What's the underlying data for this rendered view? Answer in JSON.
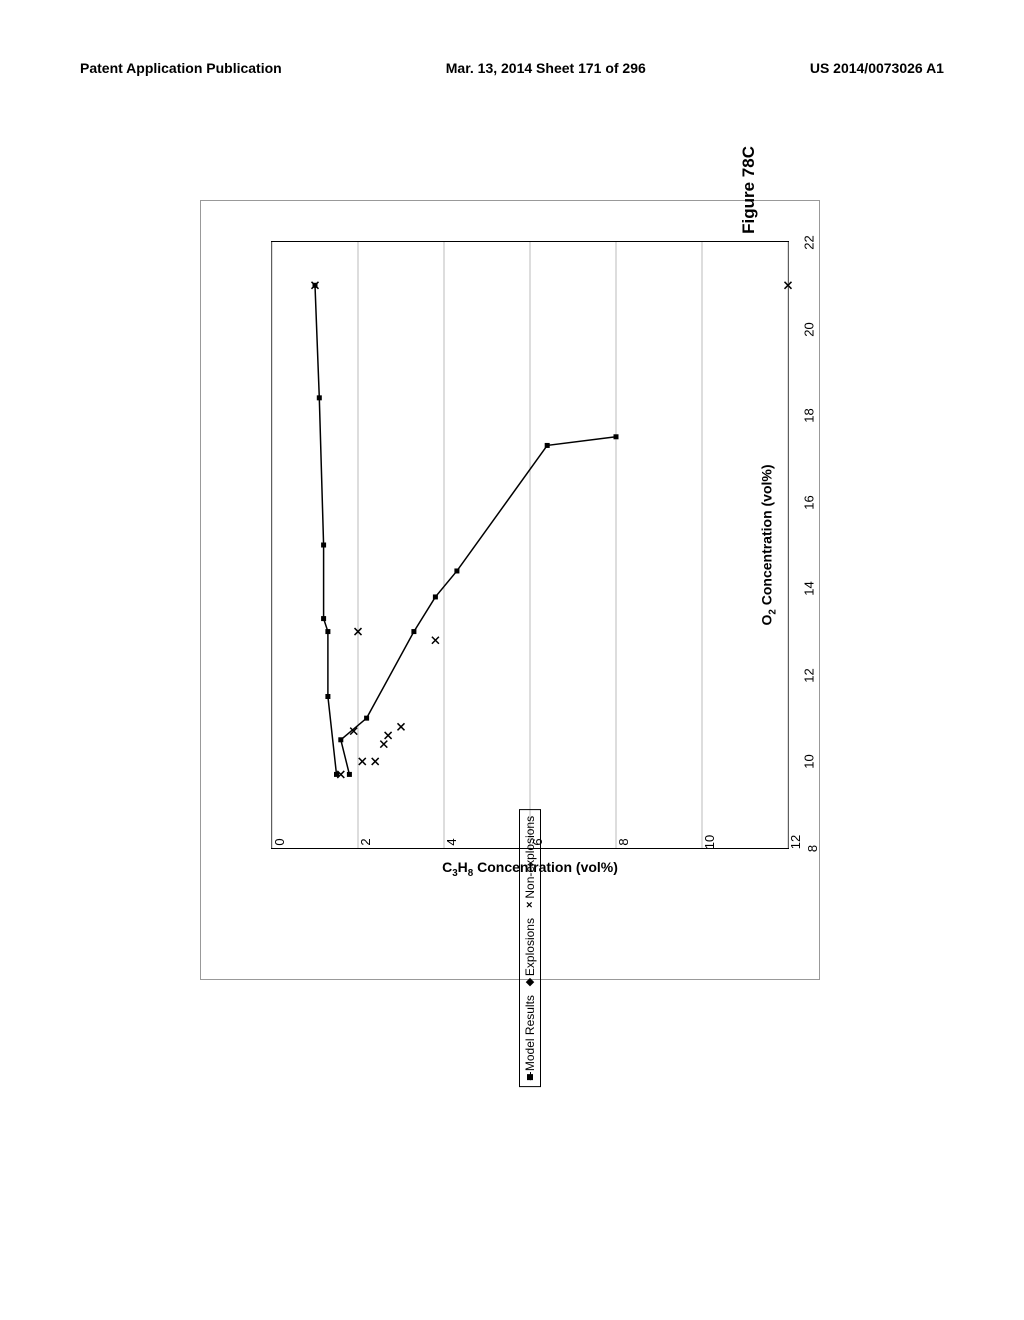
{
  "header": {
    "left": "Patent Application Publication",
    "center": "Mar. 13, 2014  Sheet 171 of 296",
    "right": "US 2014/0073026 A1"
  },
  "figure": {
    "title": "Figure 78C",
    "type": "scatter-line",
    "background_color": "#ffffff",
    "grid_color": "#bbbbbb",
    "border_color": "#000000",
    "x_axis": {
      "label_html": "O₂ Concentration (vol%)",
      "label_fontsize": 14,
      "min": 8,
      "max": 22,
      "ticks": [
        8,
        10,
        12,
        14,
        16,
        18,
        20,
        22
      ]
    },
    "y_axis": {
      "label_html": "C₃H₈ Concentration (vol%)",
      "label_fontsize": 14,
      "min": 0,
      "max": 12,
      "ticks": [
        0,
        2,
        4,
        6,
        8,
        10,
        12
      ]
    },
    "series": {
      "model_results": {
        "type": "line",
        "marker": "square",
        "marker_size": 5,
        "line_width": 1.5,
        "color": "#000000",
        "points": [
          [
            9.7,
            1.8
          ],
          [
            10.5,
            1.6
          ],
          [
            11.0,
            2.2
          ],
          [
            13.0,
            3.3
          ],
          [
            13.8,
            3.8
          ],
          [
            14.4,
            4.3
          ],
          [
            17.3,
            6.4
          ],
          [
            17.5,
            8.0
          ],
          [
            9.7,
            1.5
          ],
          [
            11.5,
            1.3
          ],
          [
            13.0,
            1.3
          ],
          [
            13.3,
            1.2
          ],
          [
            15.0,
            1.2
          ],
          [
            18.4,
            1.1
          ],
          [
            21.0,
            1.0
          ]
        ]
      },
      "explosions": {
        "type": "scatter",
        "marker": "diamond",
        "marker_size": 6,
        "color": "#000000",
        "points": []
      },
      "non_explosions": {
        "type": "scatter",
        "marker": "x",
        "marker_size": 7,
        "color": "#000000",
        "points": [
          [
            9.7,
            1.6
          ],
          [
            10.0,
            2.1
          ],
          [
            10.0,
            2.4
          ],
          [
            10.4,
            2.6
          ],
          [
            10.6,
            2.7
          ],
          [
            10.8,
            3.0
          ],
          [
            12.8,
            3.8
          ],
          [
            13.0,
            2.0
          ],
          [
            10.7,
            1.9
          ],
          [
            21.0,
            1.0
          ],
          [
            21.0,
            12.0
          ]
        ]
      }
    },
    "legend": {
      "items": [
        {
          "marker": "line-square",
          "label": "Model Results"
        },
        {
          "marker": "diamond",
          "label": "Explosions"
        },
        {
          "marker": "x",
          "label": "Non-explosions"
        }
      ]
    }
  }
}
